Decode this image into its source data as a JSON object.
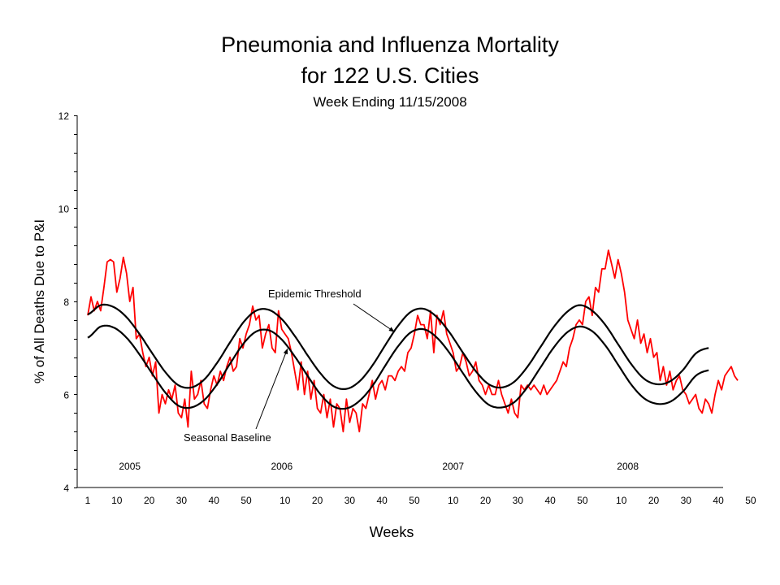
{
  "chart_data": {
    "type": "line",
    "title": "Pneumonia and Influenza Mortality",
    "title_line2": "for 122 U.S. Cities",
    "subtitle": "Week Ending 11/15/2008",
    "xlabel": "Weeks",
    "ylabel": "% of All Deaths Due to P&I",
    "ylim": [
      4,
      12
    ],
    "yticks": [
      "4",
      "6",
      "8",
      "10",
      "12"
    ],
    "ytick_values": [
      4,
      6,
      8,
      10,
      12
    ],
    "y_minor_step": 0.4,
    "xlim_weeks": [
      0,
      210
    ],
    "xticks": [
      {
        "label": "1",
        "week": 0
      },
      {
        "label": "10",
        "week": 9
      },
      {
        "label": "20",
        "week": 19
      },
      {
        "label": "30",
        "week": 29
      },
      {
        "label": "40",
        "week": 39
      },
      {
        "label": "50",
        "week": 49
      },
      {
        "label": "10",
        "week": 61
      },
      {
        "label": "20",
        "week": 71
      },
      {
        "label": "30",
        "week": 81
      },
      {
        "label": "40",
        "week": 91
      },
      {
        "label": "50",
        "week": 101
      },
      {
        "label": "10",
        "week": 113
      },
      {
        "label": "20",
        "week": 123
      },
      {
        "label": "30",
        "week": 133
      },
      {
        "label": "40",
        "week": 143
      },
      {
        "label": "50",
        "week": 153
      },
      {
        "label": "10",
        "week": 165
      },
      {
        "label": "20",
        "week": 175
      },
      {
        "label": "30",
        "week": 185
      },
      {
        "label": "40",
        "week": 195
      },
      {
        "label": "50",
        "week": 205
      }
    ],
    "years": [
      {
        "label": "2005",
        "week": 13
      },
      {
        "label": "2006",
        "week": 60
      },
      {
        "label": "2007",
        "week": 113
      },
      {
        "label": "2008",
        "week": 167
      }
    ],
    "annotations": [
      {
        "label": "Epidemic Threshold",
        "target_series": "Epidemic Threshold",
        "target_week": 95
      },
      {
        "label": "Seasonal Baseline",
        "target_series": "Seasonal Baseline",
        "target_week": 62
      }
    ],
    "series": [
      {
        "name": "P&I Mortality",
        "color": "#ff0000",
        "start_week": 0,
        "values": [
          7.7,
          8.1,
          7.8,
          8.0,
          7.8,
          8.3,
          8.85,
          8.9,
          8.85,
          8.2,
          8.5,
          8.95,
          8.6,
          8.0,
          8.3,
          7.2,
          7.3,
          6.9,
          6.6,
          6.8,
          6.4,
          6.7,
          5.6,
          6.0,
          5.8,
          6.1,
          5.9,
          6.2,
          5.6,
          5.5,
          5.9,
          5.3,
          6.5,
          5.9,
          6.0,
          6.3,
          5.8,
          5.7,
          6.1,
          6.4,
          6.2,
          6.5,
          6.3,
          6.6,
          6.8,
          6.5,
          6.6,
          7.2,
          7.0,
          7.3,
          7.5,
          7.9,
          7.6,
          7.7,
          7.0,
          7.3,
          7.5,
          7.0,
          6.9,
          7.8,
          7.4,
          7.3,
          7.2,
          6.9,
          6.5,
          6.1,
          6.7,
          6.0,
          6.5,
          5.9,
          6.3,
          5.7,
          5.6,
          6.0,
          5.5,
          5.9,
          5.3,
          5.8,
          5.7,
          5.2,
          5.9,
          5.4,
          5.7,
          5.6,
          5.2,
          5.8,
          5.7,
          6.0,
          6.3,
          5.9,
          6.2,
          6.3,
          6.1,
          6.4,
          6.4,
          6.3,
          6.5,
          6.6,
          6.5,
          6.9,
          7.0,
          7.3,
          7.7,
          7.5,
          7.5,
          7.2,
          7.8,
          6.9,
          7.7,
          7.5,
          7.8,
          7.3,
          7.1,
          6.9,
          6.5,
          6.6,
          6.9,
          6.7,
          6.4,
          6.5,
          6.7,
          6.3,
          6.2,
          6.0,
          6.2,
          6.0,
          6.0,
          6.3,
          6.0,
          5.8,
          5.6,
          5.9,
          5.6,
          5.5,
          6.2,
          6.1,
          6.2,
          6.1,
          6.2,
          6.1,
          6.0,
          6.2,
          6.0,
          6.1,
          6.2,
          6.3,
          6.5,
          6.7,
          6.6,
          7.0,
          7.2,
          7.5,
          7.6,
          7.5,
          8.0,
          8.1,
          7.7,
          8.3,
          8.2,
          8.7,
          8.7,
          9.1,
          8.8,
          8.5,
          8.9,
          8.6,
          8.2,
          7.6,
          7.4,
          7.2,
          7.6,
          7.1,
          7.3,
          6.9,
          7.2,
          6.8,
          6.9,
          6.3,
          6.6,
          6.2,
          6.5,
          6.1,
          6.3,
          6.4,
          6.1,
          6.0,
          5.8,
          5.9,
          6.0,
          5.7,
          5.6,
          5.9,
          5.8,
          5.6,
          6.0,
          6.3,
          6.1,
          6.4,
          6.5,
          6.6,
          6.4,
          6.3
        ]
      },
      {
        "name": "Epidemic Threshold",
        "color": "#000000",
        "sample_step_weeks": 4,
        "start_week": 0,
        "values": [
          7.72,
          7.92,
          7.88,
          7.66,
          7.3,
          6.88,
          6.48,
          6.2,
          6.15,
          6.32,
          6.68,
          7.12,
          7.54,
          7.8,
          7.82,
          7.62,
          7.26,
          6.84,
          6.45,
          6.18,
          6.12,
          6.28,
          6.62,
          7.06,
          7.48,
          7.78,
          7.84,
          7.66,
          7.32,
          6.9,
          6.5,
          6.22,
          6.15,
          6.28,
          6.6,
          7.02,
          7.44,
          7.76,
          7.92,
          7.8,
          7.5,
          7.08,
          6.66,
          6.34,
          6.22,
          6.28,
          6.52,
          6.88,
          7.0
        ]
      },
      {
        "name": "Seasonal Baseline",
        "color": "#000000",
        "sample_step_weeks": 4,
        "start_week": 0,
        "values": [
          7.22,
          7.46,
          7.44,
          7.22,
          6.86,
          6.44,
          6.04,
          5.76,
          5.72,
          5.88,
          6.22,
          6.66,
          7.08,
          7.35,
          7.38,
          7.18,
          6.82,
          6.4,
          6.0,
          5.74,
          5.7,
          5.86,
          6.18,
          6.62,
          7.04,
          7.34,
          7.4,
          7.22,
          6.88,
          6.46,
          6.06,
          5.78,
          5.72,
          5.84,
          6.16,
          6.58,
          7.0,
          7.32,
          7.46,
          7.36,
          7.06,
          6.64,
          6.22,
          5.92,
          5.8,
          5.84,
          6.06,
          6.4,
          6.52
        ]
      }
    ]
  }
}
